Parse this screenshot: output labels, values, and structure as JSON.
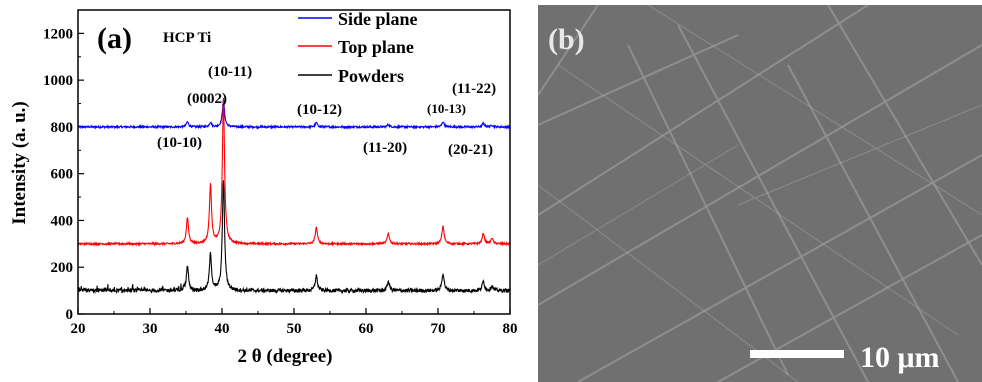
{
  "chart_data": {
    "type": "line",
    "panel_label": "(a)",
    "annotation": "HCP Ti",
    "xlabel": "2 θ (degree)",
    "ylabel": "Intensity (a. u.)",
    "xlim": [
      20,
      80
    ],
    "ylim": [
      0,
      1300
    ],
    "xticks": [
      20,
      30,
      40,
      50,
      60,
      70,
      80
    ],
    "yticks": [
      0,
      200,
      400,
      600,
      800,
      1000,
      1200
    ],
    "legend_position": "top-right",
    "series": [
      {
        "name": "Side plane",
        "color": "#0000ff",
        "baseline": 800,
        "noise": 4,
        "peaks": [
          [
            35.2,
            22
          ],
          [
            38.4,
            20
          ],
          [
            40.2,
            115
          ],
          [
            53.1,
            18
          ],
          [
            63.1,
            10
          ],
          [
            70.7,
            22
          ],
          [
            76.3,
            15
          ],
          [
            77.5,
            8
          ]
        ]
      },
      {
        "name": "Top plane",
        "color": "#ff0000",
        "baseline": 300,
        "noise": 4,
        "peaks": [
          [
            35.2,
            110
          ],
          [
            38.4,
            250
          ],
          [
            40.2,
            620
          ],
          [
            53.1,
            70
          ],
          [
            63.1,
            45
          ],
          [
            70.7,
            75
          ],
          [
            76.3,
            45
          ],
          [
            77.5,
            25
          ]
        ]
      },
      {
        "name": "Powders",
        "color": "#000000",
        "baseline": 100,
        "noise": 8,
        "peaks": [
          [
            35.2,
            105
          ],
          [
            38.4,
            155
          ],
          [
            40.2,
            475
          ],
          [
            53.1,
            65
          ],
          [
            63.1,
            40
          ],
          [
            70.7,
            75
          ],
          [
            76.3,
            40
          ],
          [
            77.5,
            20
          ]
        ]
      }
    ],
    "peak_labels": [
      "(10-10)",
      "(0002)",
      "(10-11)",
      "(10-12)",
      "(11-20)",
      "(10-13)",
      "(11-22)",
      "(20-21)"
    ]
  },
  "sem_image": {
    "panel_label": "(b)",
    "scale_bar_label": "10 μm"
  }
}
